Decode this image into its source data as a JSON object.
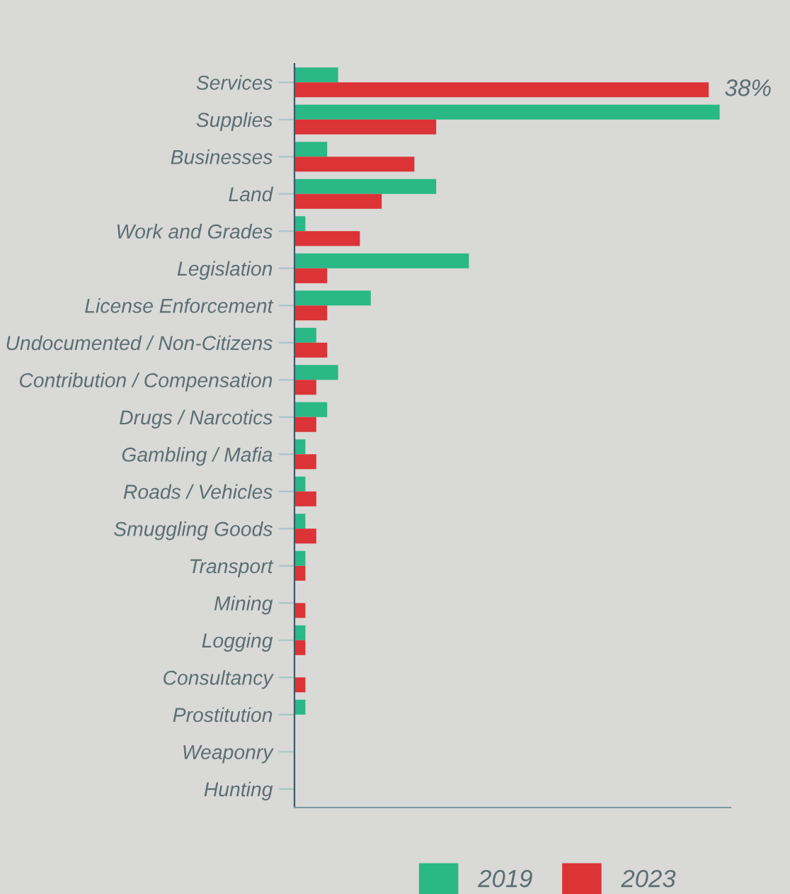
{
  "chart_data": {
    "type": "bar",
    "orientation": "horizontal",
    "xlim": [
      0,
      40
    ],
    "legend": "bottom",
    "grid": false,
    "categories": [
      "Services",
      "Supplies",
      "Businesses",
      "Land",
      "Work and Grades",
      "Legislation",
      "License Enforcement",
      "Undocumented / Non-Citizens",
      "Contribution / Compensation",
      "Drugs / Narcotics",
      "Gambling / Mafia",
      "Roads / Vehicles",
      "Smuggling Goods",
      "Transport",
      "Mining",
      "Logging",
      "Consultancy",
      "Prostitution",
      "Weaponry",
      "Hunting"
    ],
    "series": [
      {
        "name": "2019",
        "color": "#29b886",
        "values": [
          4,
          39,
          3,
          13,
          1,
          16,
          7,
          2,
          4,
          3,
          1,
          1,
          1,
          1,
          0,
          1,
          0,
          1,
          0,
          0
        ]
      },
      {
        "name": "2023",
        "color": "#dc3336",
        "values": [
          38,
          13,
          11,
          8,
          6,
          3,
          3,
          3,
          2,
          2,
          2,
          2,
          2,
          1,
          1,
          1,
          1,
          0,
          0,
          0
        ],
        "value_labels": [
          "38%",
          null,
          null,
          null,
          null,
          null,
          null,
          null,
          null,
          null,
          null,
          null,
          null,
          null,
          null,
          null,
          null,
          null,
          null,
          null
        ]
      }
    ]
  }
}
